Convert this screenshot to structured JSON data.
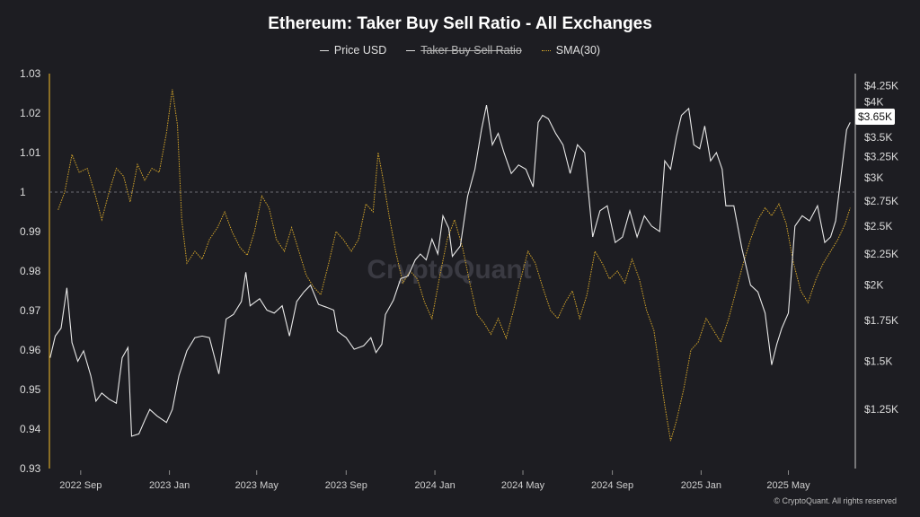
{
  "chart_data": {
    "type": "line",
    "title": "Ethereum: Taker Buy Sell Ratio - All Exchanges",
    "legend": [
      {
        "name": "Price USD",
        "color": "#dddddd",
        "style": "solid",
        "hidden": false
      },
      {
        "name": "Taker Buy Sell Ratio",
        "color": "#dddddd",
        "style": "solid",
        "hidden": true
      },
      {
        "name": "SMA(30)",
        "color": "#d4a52a",
        "style": "dotted",
        "hidden": false
      }
    ],
    "legend_placement": "top-center",
    "x_range": [
      "2022-07-20",
      "2025-08-01"
    ],
    "x_ticks": [
      {
        "date": "2022-09-01",
        "label": "2022 Sep"
      },
      {
        "date": "2023-01-01",
        "label": "2023 Jan"
      },
      {
        "date": "2023-05-01",
        "label": "2023 May"
      },
      {
        "date": "2023-09-01",
        "label": "2023 Sep"
      },
      {
        "date": "2024-01-01",
        "label": "2024 Jan"
      },
      {
        "date": "2024-05-01",
        "label": "2024 May"
      },
      {
        "date": "2024-09-01",
        "label": "2024 Sep"
      },
      {
        "date": "2025-01-01",
        "label": "2025 Jan"
      },
      {
        "date": "2025-05-01",
        "label": "2025 May"
      }
    ],
    "y_left": {
      "range": [
        0.93,
        1.03
      ],
      "ticks": [
        1.03,
        1.02,
        1.01,
        1,
        0.99,
        0.98,
        0.97,
        0.96,
        0.95,
        0.94,
        0.93
      ],
      "tick_labels": [
        "1.03",
        "1.02",
        "1.01",
        "1",
        "0.99",
        "0.98",
        "0.97",
        "0.96",
        "0.95",
        "0.94",
        "0.93"
      ],
      "reference_line": 1
    },
    "y_right": {
      "scale": "log",
      "range": [
        1000,
        4450
      ],
      "ticks": [
        4250,
        4000,
        3500,
        3250,
        3000,
        2750,
        2500,
        2250,
        2000,
        1750,
        1500,
        1250
      ],
      "tick_labels": [
        "$4.25K",
        "$4K",
        "$3.5K",
        "$3.25K",
        "$3K",
        "$2.75K",
        "$2.5K",
        "$2.25K",
        "$2K",
        "$1.75K",
        "$1.5K",
        "$1.25K"
      ]
    },
    "current_price_label": "$3.65K",
    "grid": false,
    "series": [
      {
        "name": "Price USD",
        "axis": "right",
        "points": [
          [
            "2022-07-21",
            1520
          ],
          [
            "2022-07-28",
            1650
          ],
          [
            "2022-08-05",
            1700
          ],
          [
            "2022-08-13",
            1980
          ],
          [
            "2022-08-20",
            1610
          ],
          [
            "2022-08-28",
            1500
          ],
          [
            "2022-09-05",
            1560
          ],
          [
            "2022-09-15",
            1420
          ],
          [
            "2022-09-22",
            1290
          ],
          [
            "2022-09-30",
            1330
          ],
          [
            "2022-10-10",
            1300
          ],
          [
            "2022-10-20",
            1280
          ],
          [
            "2022-10-28",
            1520
          ],
          [
            "2022-11-05",
            1580
          ],
          [
            "2022-11-10",
            1130
          ],
          [
            "2022-11-20",
            1140
          ],
          [
            "2022-11-28",
            1200
          ],
          [
            "2022-12-05",
            1250
          ],
          [
            "2022-12-15",
            1220
          ],
          [
            "2022-12-28",
            1190
          ],
          [
            "2023-01-05",
            1250
          ],
          [
            "2023-01-14",
            1420
          ],
          [
            "2023-01-25",
            1560
          ],
          [
            "2023-02-05",
            1640
          ],
          [
            "2023-02-15",
            1650
          ],
          [
            "2023-02-25",
            1640
          ],
          [
            "2023-03-10",
            1430
          ],
          [
            "2023-03-20",
            1760
          ],
          [
            "2023-03-30",
            1790
          ],
          [
            "2023-04-10",
            1880
          ],
          [
            "2023-04-16",
            2100
          ],
          [
            "2023-04-22",
            1850
          ],
          [
            "2023-05-05",
            1900
          ],
          [
            "2023-05-15",
            1820
          ],
          [
            "2023-05-25",
            1800
          ],
          [
            "2023-06-05",
            1850
          ],
          [
            "2023-06-15",
            1650
          ],
          [
            "2023-06-25",
            1880
          ],
          [
            "2023-07-05",
            1950
          ],
          [
            "2023-07-14",
            2000
          ],
          [
            "2023-07-25",
            1860
          ],
          [
            "2023-08-05",
            1840
          ],
          [
            "2023-08-15",
            1820
          ],
          [
            "2023-08-20",
            1680
          ],
          [
            "2023-09-01",
            1640
          ],
          [
            "2023-09-12",
            1570
          ],
          [
            "2023-09-25",
            1590
          ],
          [
            "2023-10-05",
            1640
          ],
          [
            "2023-10-12",
            1550
          ],
          [
            "2023-10-20",
            1600
          ],
          [
            "2023-10-25",
            1790
          ],
          [
            "2023-11-05",
            1890
          ],
          [
            "2023-11-15",
            2050
          ],
          [
            "2023-11-25",
            2070
          ],
          [
            "2023-12-05",
            2200
          ],
          [
            "2023-12-12",
            2250
          ],
          [
            "2023-12-20",
            2200
          ],
          [
            "2023-12-28",
            2380
          ],
          [
            "2024-01-05",
            2250
          ],
          [
            "2024-01-12",
            2600
          ],
          [
            "2024-01-20",
            2480
          ],
          [
            "2024-01-25",
            2230
          ],
          [
            "2024-02-05",
            2320
          ],
          [
            "2024-02-15",
            2800
          ],
          [
            "2024-02-25",
            3100
          ],
          [
            "2024-03-05",
            3600
          ],
          [
            "2024-03-12",
            3950
          ],
          [
            "2024-03-20",
            3400
          ],
          [
            "2024-03-28",
            3550
          ],
          [
            "2024-04-05",
            3300
          ],
          [
            "2024-04-15",
            3050
          ],
          [
            "2024-04-25",
            3150
          ],
          [
            "2024-05-05",
            3100
          ],
          [
            "2024-05-15",
            2900
          ],
          [
            "2024-05-22",
            3700
          ],
          [
            "2024-05-28",
            3800
          ],
          [
            "2024-06-05",
            3750
          ],
          [
            "2024-06-15",
            3550
          ],
          [
            "2024-06-25",
            3400
          ],
          [
            "2024-07-05",
            3050
          ],
          [
            "2024-07-15",
            3400
          ],
          [
            "2024-07-25",
            3300
          ],
          [
            "2024-08-05",
            2400
          ],
          [
            "2024-08-15",
            2650
          ],
          [
            "2024-08-25",
            2700
          ],
          [
            "2024-09-05",
            2350
          ],
          [
            "2024-09-15",
            2400
          ],
          [
            "2024-09-25",
            2650
          ],
          [
            "2024-10-05",
            2400
          ],
          [
            "2024-10-15",
            2600
          ],
          [
            "2024-10-25",
            2500
          ],
          [
            "2024-11-05",
            2450
          ],
          [
            "2024-11-12",
            3200
          ],
          [
            "2024-11-20",
            3100
          ],
          [
            "2024-11-28",
            3500
          ],
          [
            "2024-12-05",
            3800
          ],
          [
            "2024-12-15",
            3900
          ],
          [
            "2024-12-22",
            3400
          ],
          [
            "2024-12-30",
            3350
          ],
          [
            "2025-01-06",
            3650
          ],
          [
            "2025-01-14",
            3200
          ],
          [
            "2025-01-22",
            3300
          ],
          [
            "2025-01-30",
            3100
          ],
          [
            "2025-02-04",
            2700
          ],
          [
            "2025-02-15",
            2700
          ],
          [
            "2025-02-26",
            2300
          ],
          [
            "2025-03-10",
            2000
          ],
          [
            "2025-03-20",
            1950
          ],
          [
            "2025-03-30",
            1800
          ],
          [
            "2025-04-08",
            1480
          ],
          [
            "2025-04-15",
            1600
          ],
          [
            "2025-04-22",
            1700
          ],
          [
            "2025-05-01",
            1800
          ],
          [
            "2025-05-10",
            2500
          ],
          [
            "2025-05-20",
            2600
          ],
          [
            "2025-05-30",
            2550
          ],
          [
            "2025-06-10",
            2700
          ],
          [
            "2025-06-20",
            2350
          ],
          [
            "2025-06-28",
            2400
          ],
          [
            "2025-07-05",
            2550
          ],
          [
            "2025-07-12",
            3000
          ],
          [
            "2025-07-20",
            3600
          ],
          [
            "2025-07-25",
            3700
          ]
        ]
      },
      {
        "name": "SMA(30)",
        "axis": "left",
        "points": [
          [
            "2022-08-01",
            0.9955
          ],
          [
            "2022-08-10",
            1.0
          ],
          [
            "2022-08-20",
            1.0095
          ],
          [
            "2022-08-30",
            1.005
          ],
          [
            "2022-09-10",
            1.006
          ],
          [
            "2022-09-20",
            1.0
          ],
          [
            "2022-09-30",
            0.993
          ],
          [
            "2022-10-10",
            1.0
          ],
          [
            "2022-10-20",
            1.006
          ],
          [
            "2022-10-30",
            1.004
          ],
          [
            "2022-11-08",
            0.9975
          ],
          [
            "2022-11-18",
            1.007
          ],
          [
            "2022-11-28",
            1.003
          ],
          [
            "2022-12-08",
            1.006
          ],
          [
            "2022-12-18",
            1.005
          ],
          [
            "2022-12-28",
            1.015
          ],
          [
            "2023-01-05",
            1.026
          ],
          [
            "2023-01-12",
            1.017
          ],
          [
            "2023-01-18",
            0.993
          ],
          [
            "2023-01-25",
            0.982
          ],
          [
            "2023-02-05",
            0.985
          ],
          [
            "2023-02-15",
            0.983
          ],
          [
            "2023-02-25",
            0.988
          ],
          [
            "2023-03-08",
            0.991
          ],
          [
            "2023-03-18",
            0.995
          ],
          [
            "2023-03-28",
            0.99
          ],
          [
            "2023-04-08",
            0.986
          ],
          [
            "2023-04-18",
            0.984
          ],
          [
            "2023-04-28",
            0.99
          ],
          [
            "2023-05-08",
            0.999
          ],
          [
            "2023-05-18",
            0.996
          ],
          [
            "2023-05-28",
            0.988
          ],
          [
            "2023-06-08",
            0.985
          ],
          [
            "2023-06-18",
            0.991
          ],
          [
            "2023-06-28",
            0.985
          ],
          [
            "2023-07-08",
            0.979
          ],
          [
            "2023-07-18",
            0.976
          ],
          [
            "2023-07-28",
            0.974
          ],
          [
            "2023-08-08",
            0.982
          ],
          [
            "2023-08-18",
            0.99
          ],
          [
            "2023-08-28",
            0.988
          ],
          [
            "2023-09-08",
            0.985
          ],
          [
            "2023-09-18",
            0.988
          ],
          [
            "2023-09-28",
            0.997
          ],
          [
            "2023-10-08",
            0.995
          ],
          [
            "2023-10-15",
            1.01
          ],
          [
            "2023-10-22",
            1.003
          ],
          [
            "2023-10-30",
            0.994
          ],
          [
            "2023-11-08",
            0.985
          ],
          [
            "2023-11-18",
            0.977
          ],
          [
            "2023-11-28",
            0.98
          ],
          [
            "2023-12-08",
            0.978
          ],
          [
            "2023-12-18",
            0.972
          ],
          [
            "2023-12-28",
            0.968
          ],
          [
            "2024-01-08",
            0.979
          ],
          [
            "2024-01-18",
            0.988
          ],
          [
            "2024-01-28",
            0.993
          ],
          [
            "2024-02-08",
            0.986
          ],
          [
            "2024-02-18",
            0.977
          ],
          [
            "2024-02-28",
            0.969
          ],
          [
            "2024-03-08",
            0.967
          ],
          [
            "2024-03-18",
            0.964
          ],
          [
            "2024-03-28",
            0.968
          ],
          [
            "2024-04-08",
            0.963
          ],
          [
            "2024-04-18",
            0.97
          ],
          [
            "2024-04-28",
            0.978
          ],
          [
            "2024-05-08",
            0.985
          ],
          [
            "2024-05-18",
            0.982
          ],
          [
            "2024-05-28",
            0.976
          ],
          [
            "2024-06-08",
            0.97
          ],
          [
            "2024-06-18",
            0.968
          ],
          [
            "2024-06-28",
            0.972
          ],
          [
            "2024-07-08",
            0.975
          ],
          [
            "2024-07-18",
            0.968
          ],
          [
            "2024-07-28",
            0.974
          ],
          [
            "2024-08-08",
            0.985
          ],
          [
            "2024-08-18",
            0.982
          ],
          [
            "2024-08-28",
            0.978
          ],
          [
            "2024-09-08",
            0.98
          ],
          [
            "2024-09-18",
            0.977
          ],
          [
            "2024-09-28",
            0.983
          ],
          [
            "2024-10-08",
            0.978
          ],
          [
            "2024-10-18",
            0.97
          ],
          [
            "2024-10-28",
            0.965
          ],
          [
            "2024-11-05",
            0.955
          ],
          [
            "2024-11-12",
            0.946
          ],
          [
            "2024-11-20",
            0.937
          ],
          [
            "2024-11-28",
            0.942
          ],
          [
            "2024-12-08",
            0.95
          ],
          [
            "2024-12-18",
            0.96
          ],
          [
            "2024-12-28",
            0.962
          ],
          [
            "2025-01-08",
            0.968
          ],
          [
            "2025-01-18",
            0.965
          ],
          [
            "2025-01-28",
            0.962
          ],
          [
            "2025-02-08",
            0.968
          ],
          [
            "2025-02-18",
            0.975
          ],
          [
            "2025-02-28",
            0.982
          ],
          [
            "2025-03-10",
            0.988
          ],
          [
            "2025-03-20",
            0.993
          ],
          [
            "2025-03-30",
            0.996
          ],
          [
            "2025-04-08",
            0.994
          ],
          [
            "2025-04-18",
            0.997
          ],
          [
            "2025-04-28",
            0.992
          ],
          [
            "2025-05-08",
            0.982
          ],
          [
            "2025-05-18",
            0.975
          ],
          [
            "2025-05-28",
            0.972
          ],
          [
            "2025-06-08",
            0.978
          ],
          [
            "2025-06-18",
            0.982
          ],
          [
            "2025-06-28",
            0.985
          ],
          [
            "2025-07-08",
            0.988
          ],
          [
            "2025-07-18",
            0.992
          ],
          [
            "2025-07-25",
            0.996
          ]
        ]
      }
    ]
  },
  "watermark": "CryptoQuant",
  "copyright": "© CryptoQuant. All rights reserved"
}
